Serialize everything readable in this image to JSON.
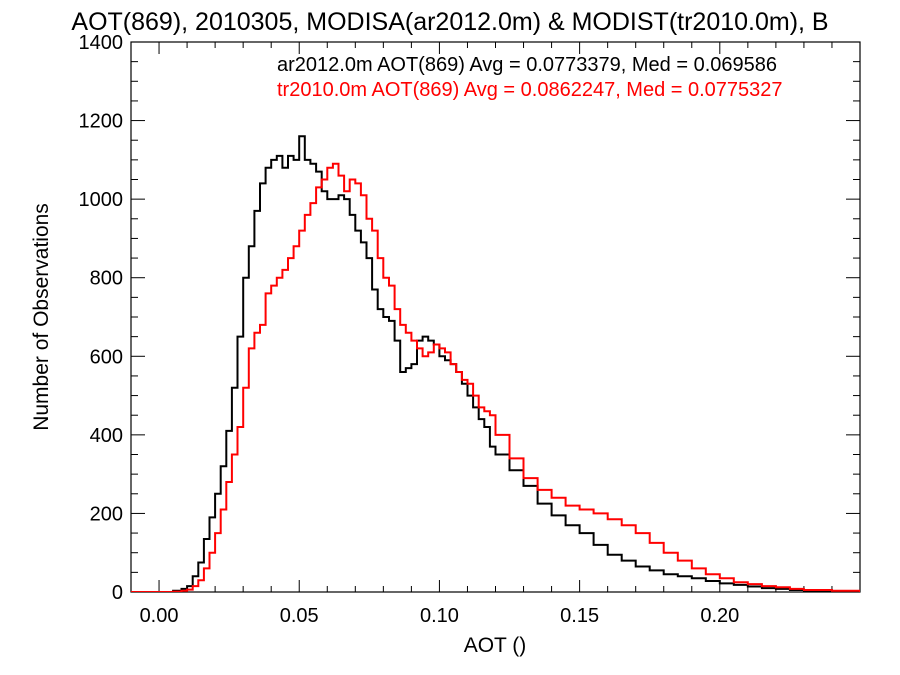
{
  "chart_data": {
    "type": "line",
    "title": "AOT(869), 2010305, MODISA(ar2012.0m) & MODIST(tr2010.0m), B",
    "xlabel": "AOT ()",
    "ylabel": "Number of Observations",
    "xlim": [
      -0.01,
      0.25
    ],
    "ylim": [
      0,
      1400
    ],
    "xticks": [
      0.0,
      0.05,
      0.1,
      0.15,
      0.2
    ],
    "xtick_labels": [
      "0.00",
      "0.05",
      "0.10",
      "0.15",
      "0.20"
    ],
    "yticks": [
      0,
      200,
      400,
      600,
      800,
      1000,
      1200,
      1400
    ],
    "ytick_labels": [
      "0",
      "200",
      "400",
      "600",
      "800",
      "1000",
      "1200",
      "1400"
    ],
    "grid": false,
    "annotations": [
      {
        "text": "ar2012.0m AOT(869) Avg = 0.0773379, Med = 0.069586",
        "color": "#000000"
      },
      {
        "text": "tr2010.0m AOT(869) Avg = 0.0862247, Med = 0.0775327",
        "color": "#ff0000"
      }
    ],
    "series": [
      {
        "color": "#000000",
        "x": [
          -0.01,
          0.0,
          0.005,
          0.008,
          0.01,
          0.012,
          0.014,
          0.016,
          0.018,
          0.02,
          0.022,
          0.024,
          0.026,
          0.028,
          0.03,
          0.032,
          0.034,
          0.036,
          0.038,
          0.04,
          0.042,
          0.044,
          0.046,
          0.048,
          0.05,
          0.052,
          0.054,
          0.056,
          0.058,
          0.06,
          0.062,
          0.064,
          0.066,
          0.068,
          0.07,
          0.072,
          0.074,
          0.076,
          0.078,
          0.08,
          0.082,
          0.084,
          0.086,
          0.088,
          0.09,
          0.092,
          0.094,
          0.096,
          0.098,
          0.1,
          0.102,
          0.104,
          0.106,
          0.108,
          0.11,
          0.112,
          0.114,
          0.116,
          0.118,
          0.12,
          0.125,
          0.13,
          0.135,
          0.14,
          0.145,
          0.15,
          0.155,
          0.16,
          0.165,
          0.17,
          0.175,
          0.18,
          0.185,
          0.19,
          0.195,
          0.2,
          0.205,
          0.21,
          0.215,
          0.22,
          0.225,
          0.23,
          0.24,
          0.25
        ],
        "y": [
          0,
          0,
          3,
          8,
          15,
          40,
          75,
          135,
          190,
          250,
          320,
          410,
          520,
          650,
          800,
          880,
          970,
          1040,
          1080,
          1100,
          1110,
          1080,
          1110,
          1100,
          1160,
          1100,
          1090,
          1070,
          1020,
          1000,
          1000,
          1010,
          1000,
          960,
          920,
          890,
          850,
          770,
          720,
          700,
          690,
          640,
          560,
          570,
          580,
          640,
          650,
          640,
          630,
          600,
          590,
          580,
          560,
          530,
          500,
          470,
          440,
          420,
          370,
          350,
          310,
          270,
          225,
          195,
          170,
          150,
          120,
          95,
          80,
          65,
          55,
          45,
          40,
          35,
          28,
          22,
          18,
          14,
          10,
          8,
          5,
          3,
          1,
          0
        ]
      },
      {
        "color": "#ff0000",
        "x": [
          -0.01,
          0.0,
          0.005,
          0.008,
          0.01,
          0.012,
          0.014,
          0.016,
          0.018,
          0.02,
          0.022,
          0.024,
          0.026,
          0.028,
          0.03,
          0.032,
          0.034,
          0.036,
          0.038,
          0.04,
          0.042,
          0.044,
          0.046,
          0.048,
          0.05,
          0.052,
          0.054,
          0.056,
          0.058,
          0.06,
          0.062,
          0.064,
          0.066,
          0.068,
          0.07,
          0.072,
          0.074,
          0.076,
          0.078,
          0.08,
          0.082,
          0.084,
          0.086,
          0.088,
          0.09,
          0.092,
          0.094,
          0.096,
          0.098,
          0.1,
          0.102,
          0.104,
          0.106,
          0.108,
          0.11,
          0.112,
          0.114,
          0.116,
          0.118,
          0.12,
          0.125,
          0.13,
          0.135,
          0.14,
          0.145,
          0.15,
          0.155,
          0.16,
          0.165,
          0.17,
          0.175,
          0.18,
          0.185,
          0.19,
          0.195,
          0.2,
          0.205,
          0.21,
          0.215,
          0.22,
          0.225,
          0.23,
          0.24,
          0.25
        ],
        "y": [
          0,
          0,
          1,
          3,
          6,
          15,
          30,
          60,
          100,
          150,
          210,
          280,
          350,
          420,
          520,
          620,
          660,
          680,
          760,
          780,
          800,
          820,
          850,
          880,
          920,
          960,
          990,
          1030,
          1050,
          1080,
          1090,
          1060,
          1020,
          1050,
          1040,
          1010,
          950,
          920,
          850,
          800,
          780,
          720,
          680,
          660,
          640,
          620,
          600,
          610,
          630,
          620,
          610,
          580,
          560,
          540,
          530,
          500,
          470,
          460,
          450,
          400,
          340,
          290,
          260,
          240,
          220,
          210,
          200,
          185,
          170,
          150,
          125,
          100,
          80,
          60,
          45,
          35,
          25,
          20,
          15,
          12,
          8,
          5,
          3,
          0
        ]
      }
    ]
  }
}
